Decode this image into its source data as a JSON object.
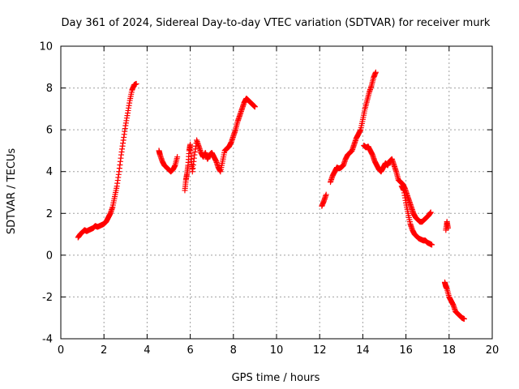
{
  "chart_data": {
    "type": "scatter",
    "title": "Day 361 of 2024, Sidereal Day-to-day VTEC variation (SDTVAR) for receiver murk",
    "xlabel": "GPS time / hours",
    "ylabel": "SDTVAR / TECUs",
    "xlim": [
      0,
      20
    ],
    "ylim": [
      -4,
      10
    ],
    "xticks": [
      0,
      2,
      4,
      6,
      8,
      10,
      12,
      14,
      16,
      18,
      20
    ],
    "yticks": [
      -4,
      -2,
      0,
      2,
      4,
      6,
      8,
      10
    ],
    "grid": true,
    "marker": "+",
    "color": "#ff0000",
    "series": [
      {
        "name": "SDTVAR",
        "segments": [
          [
            [
              0.8,
              0.85
            ],
            [
              0.9,
              1.0
            ],
            [
              1.0,
              1.1
            ],
            [
              1.1,
              1.2
            ],
            [
              1.2,
              1.15
            ],
            [
              1.3,
              1.2
            ],
            [
              1.4,
              1.25
            ],
            [
              1.5,
              1.3
            ],
            [
              1.6,
              1.4
            ],
            [
              1.7,
              1.35
            ],
            [
              1.8,
              1.4
            ],
            [
              1.9,
              1.45
            ],
            [
              2.0,
              1.5
            ],
            [
              2.1,
              1.6
            ],
            [
              2.2,
              1.8
            ],
            [
              2.3,
              2.0
            ],
            [
              2.4,
              2.3
            ],
            [
              2.5,
              2.8
            ],
            [
              2.6,
              3.3
            ],
            [
              2.7,
              4.0
            ],
            [
              2.8,
              4.8
            ],
            [
              2.9,
              5.5
            ],
            [
              3.0,
              6.2
            ],
            [
              3.1,
              6.8
            ],
            [
              3.2,
              7.4
            ],
            [
              3.3,
              7.9
            ],
            [
              3.4,
              8.15
            ],
            [
              3.5,
              8.2
            ]
          ],
          [
            [
              4.55,
              5.0
            ],
            [
              4.6,
              4.8
            ],
            [
              4.7,
              4.5
            ],
            [
              4.8,
              4.3
            ],
            [
              4.9,
              4.2
            ],
            [
              5.0,
              4.1
            ],
            [
              5.1,
              4.0
            ],
            [
              5.2,
              4.1
            ],
            [
              5.3,
              4.3
            ],
            [
              5.4,
              4.7
            ]
          ],
          [
            [
              5.75,
              3.1
            ],
            [
              5.8,
              3.6
            ],
            [
              5.85,
              3.9
            ],
            [
              5.9,
              4.3
            ],
            [
              5.95,
              5.0
            ],
            [
              6.0,
              5.3
            ],
            [
              6.05,
              4.6
            ],
            [
              6.1,
              4.0
            ],
            [
              6.2,
              4.8
            ],
            [
              6.3,
              5.5
            ],
            [
              6.4,
              5.2
            ],
            [
              6.5,
              4.9
            ],
            [
              6.6,
              4.7
            ],
            [
              6.7,
              4.9
            ],
            [
              6.8,
              4.6
            ],
            [
              6.9,
              4.8
            ],
            [
              7.0,
              4.9
            ],
            [
              7.1,
              4.7
            ],
            [
              7.2,
              4.5
            ],
            [
              7.3,
              4.2
            ],
            [
              7.4,
              4.0
            ],
            [
              7.5,
              4.5
            ],
            [
              7.6,
              5.0
            ],
            [
              7.7,
              5.1
            ],
            [
              7.8,
              5.2
            ],
            [
              7.9,
              5.4
            ],
            [
              8.0,
              5.7
            ],
            [
              8.1,
              6.0
            ],
            [
              8.2,
              6.4
            ],
            [
              8.3,
              6.7
            ],
            [
              8.4,
              7.0
            ],
            [
              8.5,
              7.3
            ],
            [
              8.6,
              7.5
            ],
            [
              8.7,
              7.4
            ],
            [
              8.8,
              7.3
            ],
            [
              8.9,
              7.2
            ],
            [
              9.0,
              7.1
            ]
          ],
          [
            [
              12.1,
              2.35
            ],
            [
              12.2,
              2.6
            ],
            [
              12.3,
              2.9
            ]
          ],
          [
            [
              12.5,
              3.5
            ],
            [
              12.6,
              3.8
            ],
            [
              12.7,
              4.0
            ],
            [
              12.8,
              4.2
            ],
            [
              12.9,
              4.15
            ],
            [
              13.0,
              4.2
            ],
            [
              13.1,
              4.3
            ],
            [
              13.2,
              4.6
            ],
            [
              13.3,
              4.8
            ],
            [
              13.4,
              4.9
            ],
            [
              13.5,
              5.0
            ],
            [
              13.6,
              5.3
            ],
            [
              13.7,
              5.6
            ],
            [
              13.8,
              5.8
            ],
            [
              13.9,
              6.0
            ],
            [
              14.0,
              6.5
            ],
            [
              14.1,
              7.0
            ],
            [
              14.2,
              7.4
            ],
            [
              14.3,
              7.8
            ],
            [
              14.4,
              8.1
            ],
            [
              14.5,
              8.5
            ],
            [
              14.6,
              8.75
            ]
          ],
          [
            [
              14.05,
              5.25
            ],
            [
              14.15,
              5.15
            ],
            [
              14.25,
              5.2
            ],
            [
              14.35,
              5.0
            ],
            [
              14.45,
              4.8
            ],
            [
              14.55,
              4.5
            ],
            [
              14.65,
              4.3
            ],
            [
              14.75,
              4.1
            ],
            [
              14.85,
              4.0
            ],
            [
              14.95,
              4.2
            ],
            [
              15.05,
              4.4
            ],
            [
              15.15,
              4.3
            ],
            [
              15.25,
              4.5
            ],
            [
              15.35,
              4.6
            ],
            [
              15.45,
              4.3
            ],
            [
              15.55,
              4.0
            ],
            [
              15.65,
              3.6
            ],
            [
              15.75,
              3.5
            ],
            [
              15.85,
              3.4
            ],
            [
              15.95,
              3.2
            ],
            [
              16.05,
              2.9
            ],
            [
              16.15,
              2.6
            ],
            [
              16.25,
              2.3
            ],
            [
              16.35,
              2.0
            ],
            [
              16.45,
              1.8
            ],
            [
              16.55,
              1.7
            ],
            [
              16.65,
              1.6
            ],
            [
              16.75,
              1.6
            ],
            [
              16.85,
              1.7
            ],
            [
              16.95,
              1.8
            ],
            [
              17.05,
              1.9
            ],
            [
              17.15,
              2.05
            ]
          ],
          [
            [
              15.8,
              3.3
            ],
            [
              15.9,
              3.1
            ],
            [
              16.0,
              2.5
            ],
            [
              16.1,
              2.0
            ],
            [
              16.2,
              1.5
            ],
            [
              16.3,
              1.2
            ],
            [
              16.4,
              1.0
            ],
            [
              16.5,
              0.9
            ],
            [
              16.6,
              0.8
            ],
            [
              16.7,
              0.75
            ],
            [
              16.8,
              0.7
            ],
            [
              16.9,
              0.7
            ],
            [
              17.0,
              0.6
            ],
            [
              17.1,
              0.55
            ],
            [
              17.2,
              0.5
            ]
          ],
          [
            [
              17.85,
              1.2
            ],
            [
              17.9,
              1.6
            ],
            [
              17.95,
              1.3
            ]
          ],
          [
            [
              17.8,
              -1.3
            ],
            [
              17.85,
              -1.5
            ],
            [
              17.9,
              -1.6
            ],
            [
              18.0,
              -2.0
            ],
            [
              18.1,
              -2.2
            ],
            [
              18.2,
              -2.4
            ],
            [
              18.3,
              -2.7
            ],
            [
              18.4,
              -2.8
            ],
            [
              18.5,
              -2.9
            ],
            [
              18.6,
              -3.0
            ],
            [
              18.7,
              -3.05
            ]
          ]
        ]
      }
    ]
  }
}
